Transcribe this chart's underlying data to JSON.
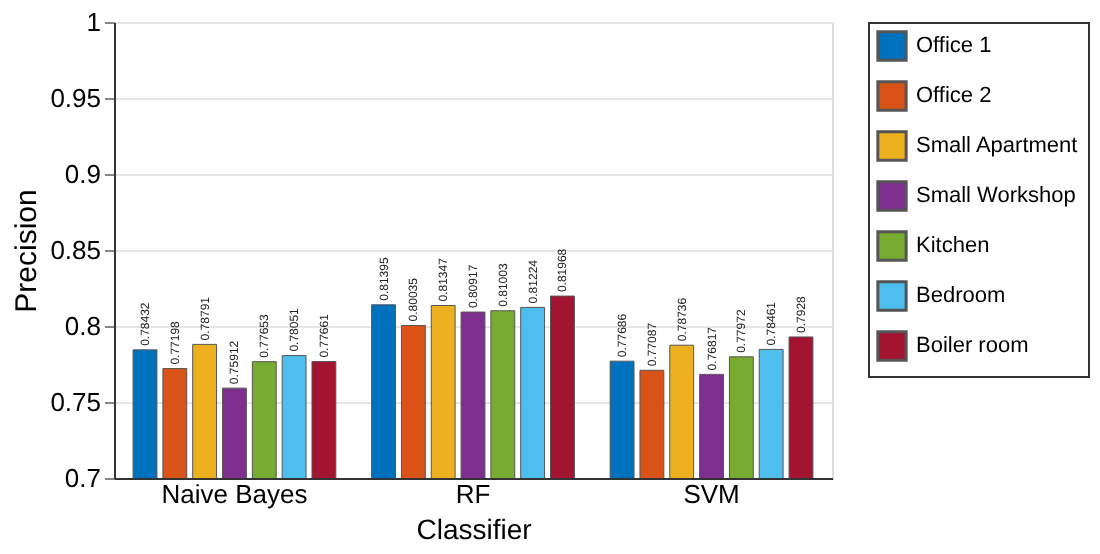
{
  "chart_data": {
    "type": "bar",
    "xlabel": "Classifier",
    "ylabel": "Precision",
    "categories": [
      "Naive Bayes",
      "RF",
      "SVM"
    ],
    "series": [
      {
        "name": "Office 1",
        "color": "#0072bd",
        "values": [
          0.78432,
          0.81395,
          0.77686
        ]
      },
      {
        "name": "Office 2",
        "color": "#d95319",
        "values": [
          0.77198,
          0.80035,
          0.77087
        ]
      },
      {
        "name": "Small Apartment",
        "color": "#edb120",
        "values": [
          0.78791,
          0.81347,
          0.78736
        ]
      },
      {
        "name": "Small Workshop",
        "color": "#7e2f8e",
        "values": [
          0.75912,
          0.80917,
          0.76817
        ]
      },
      {
        "name": "Kitchen",
        "color": "#77ac30",
        "values": [
          0.77653,
          0.81003,
          0.77972
        ]
      },
      {
        "name": "Bedroom",
        "color": "#4dbeee",
        "values": [
          0.78051,
          0.81224,
          0.78461
        ]
      },
      {
        "name": "Boiler room",
        "color": "#a2142f",
        "values": [
          0.77661,
          0.81968,
          0.7928
        ]
      }
    ],
    "ylim": [
      0.7,
      1
    ],
    "yticks": [
      0.7,
      0.75,
      0.8,
      0.85,
      0.9,
      0.95,
      1
    ],
    "grid": "y",
    "legend": "right",
    "data_labels": true
  }
}
